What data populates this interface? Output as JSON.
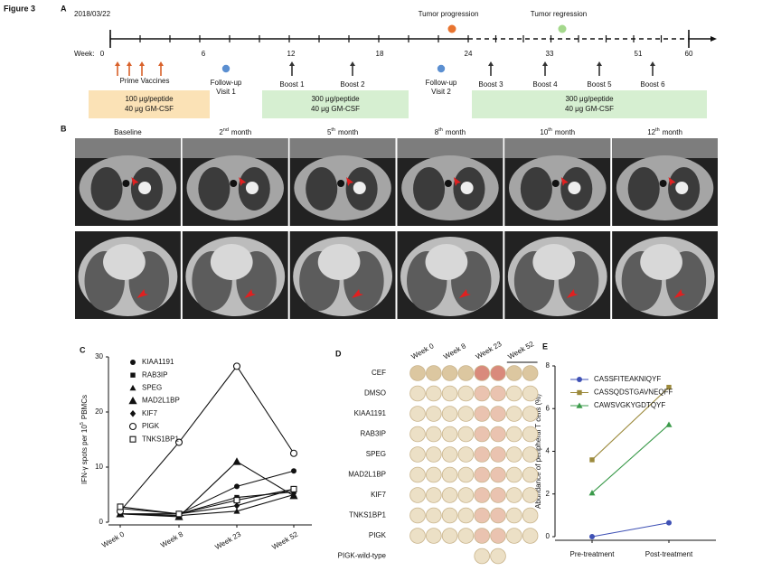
{
  "figure_label": "Figure 3",
  "panel_a": {
    "label": "A",
    "date": "2018/03/22",
    "week_label": "Week:",
    "weeks": [
      "0",
      "6",
      "12",
      "18",
      "24",
      "33",
      "51",
      "60"
    ],
    "events_above": [
      "Tumor progression",
      "Tumor regression"
    ],
    "events_below": [
      [
        "Prime Vaccines"
      ],
      [
        "Follow-up",
        "Visit 1"
      ],
      [
        "Boost 1"
      ],
      [
        "Boost 2"
      ],
      [
        "Follow-up",
        "Visit 2"
      ],
      [
        "Boost 3"
      ],
      [
        "Boost 4"
      ],
      [
        "Boost 5"
      ],
      [
        "Boost 6"
      ]
    ],
    "doses": [
      [
        "100 μg/peptide",
        "40 μg GM-CSF"
      ],
      [
        "300 μg/peptide",
        "40 μg GM-CSF"
      ],
      [
        "300 μg/peptide",
        "40 μg GM-CSF"
      ]
    ]
  },
  "panel_b": {
    "label": "B",
    "columns": [
      [
        "Baseline"
      ],
      [
        "2",
        "nd",
        "month"
      ],
      [
        "5",
        "th",
        "month"
      ],
      [
        "8",
        "th",
        "month"
      ],
      [
        "10",
        "th",
        "month"
      ],
      [
        "12",
        "th",
        "month"
      ]
    ]
  },
  "chart_data": [
    {
      "type": "line",
      "panel": "C",
      "ylabel": [
        "IFN-γ spots per 10",
        "5",
        "PBMCs"
      ],
      "categories": [
        "Week 0",
        "Week 8",
        "Week 23",
        "Week 52"
      ],
      "ylim": [
        0,
        30
      ],
      "yticks": [
        0,
        10,
        20,
        30
      ],
      "series": [
        {
          "name": "KIAA1191",
          "color": "#111111",
          "marker": "circle-filled",
          "values": [
            1.5,
            1.5,
            6.5,
            9.3
          ]
        },
        {
          "name": "RAB3IP",
          "color": "#111111",
          "marker": "square-filled",
          "values": [
            2.5,
            1.5,
            4.5,
            5.5
          ]
        },
        {
          "name": "SPEG",
          "color": "#111111",
          "marker": "triangle-filled",
          "values": [
            1.5,
            1.2,
            2,
            5
          ]
        },
        {
          "name": "MAD2L1BP",
          "color": "#111111",
          "marker": "triangle-large",
          "values": [
            1.5,
            1,
            11,
            4.8
          ]
        },
        {
          "name": "KIF7",
          "color": "#111111",
          "marker": "diamond-filled",
          "values": [
            1.5,
            1.5,
            3,
            6
          ]
        },
        {
          "name": "PIGK",
          "color": "#111111",
          "marker": "circle-open",
          "values": [
            2,
            14.5,
            28.3,
            12.5
          ]
        },
        {
          "name": "TNKS1BP1",
          "color": "#111111",
          "marker": "square-open",
          "values": [
            2.8,
            1.5,
            4,
            6
          ]
        }
      ]
    },
    {
      "type": "line",
      "panel": "E",
      "ylabel": [
        "Abundance of peripheral T cells (%)"
      ],
      "categories": [
        "Pre-treatment",
        "Post-treatment"
      ],
      "ylim": [
        0,
        8
      ],
      "yticks": [
        0,
        2,
        4,
        6,
        8
      ],
      "series": [
        {
          "name": "CASSFITEAKNIQYF",
          "color": "#3f51b5",
          "marker": "circle-filled",
          "values": [
            0,
            0.65
          ]
        },
        {
          "name": "CASSQDSTGAVNEQFF",
          "color": "#9c8a3c",
          "marker": "square-filled",
          "values": [
            3.6,
            7
          ]
        },
        {
          "name": "CAWSVGKYGDTQYF",
          "color": "#3a9a4a",
          "marker": "triangle-filled",
          "values": [
            2.05,
            5.25
          ]
        }
      ]
    }
  ],
  "panel_d": {
    "label": "D",
    "columns": [
      "Week 0",
      "Week 8",
      "Week 23",
      "Week 52"
    ],
    "rows": [
      "CEF",
      "DMSO",
      "KIAA1191",
      "RAB3IP",
      "SPEG",
      "MAD2L1BP",
      "KIF7",
      "TNKS1BP1",
      "PIGK",
      "PIGK-wild-type"
    ]
  }
}
